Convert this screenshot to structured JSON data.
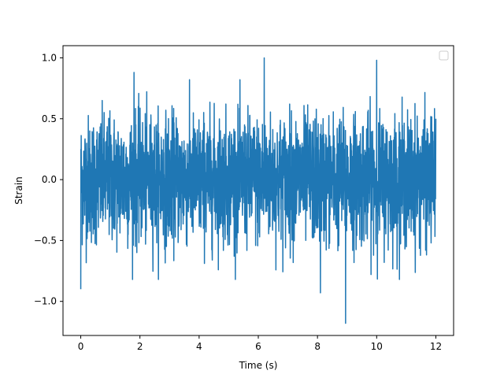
{
  "chart_data": {
    "type": "line",
    "title": "",
    "xlabel": "Time (s)",
    "ylabel": "Strain",
    "xlim": [
      -0.6,
      12.6
    ],
    "ylim": [
      -1.28,
      1.1
    ],
    "xticks": [
      0,
      2,
      4,
      6,
      8,
      10,
      12
    ],
    "xtick_labels": [
      "0",
      "2",
      "4",
      "6",
      "8",
      "10",
      "12"
    ],
    "yticks": [
      -1.0,
      -0.5,
      0.0,
      0.5,
      1.0
    ],
    "ytick_labels": [
      "−1.0",
      "−0.5",
      "0.0",
      "0.5",
      "1.0"
    ],
    "grid": false,
    "legend": {
      "placement": "top-right",
      "entries": []
    },
    "series": [
      {
        "color": "#1f77b4",
        "x_range": [
          0,
          12
        ],
        "note_envelope_peaks": [
          {
            "x": 0.0,
            "y": -0.9
          },
          {
            "x": 1.8,
            "y": 0.88
          },
          {
            "x": 6.2,
            "y": 1.0
          },
          {
            "x": 8.1,
            "y": -0.93
          },
          {
            "x": 8.95,
            "y": -1.18
          },
          {
            "x": 10.0,
            "y": 0.98
          },
          {
            "x": 12.0,
            "y": 0.5
          }
        ]
      }
    ]
  },
  "colors": {
    "line": "#1f77b4",
    "axes": "#000000",
    "background": "#ffffff"
  }
}
